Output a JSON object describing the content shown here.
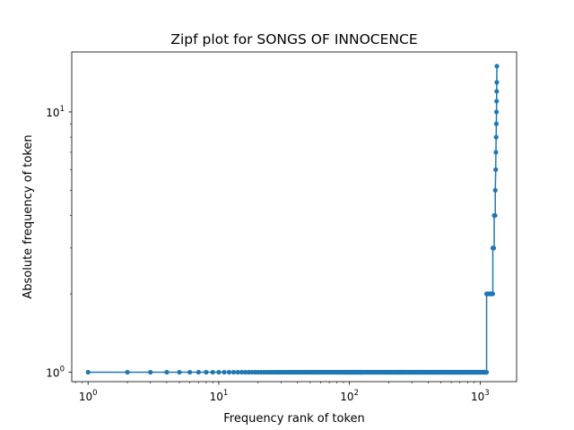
{
  "chart_data": {
    "type": "line",
    "title": "Zipf plot for SONGS OF INNOCENCE",
    "xlabel": "Frequency rank of token",
    "ylabel": "Absolute frequency of token",
    "xscale": "log",
    "yscale": "log",
    "xlim": [
      0.75,
      1900
    ],
    "ylim": [
      0.92,
      17
    ],
    "x_ticks": [
      {
        "base": "10",
        "exp": "0"
      },
      {
        "base": "10",
        "exp": "1"
      },
      {
        "base": "10",
        "exp": "2"
      },
      {
        "base": "10",
        "exp": "3"
      }
    ],
    "y_ticks": [
      {
        "base": "10",
        "exp": "0"
      },
      {
        "base": "10",
        "exp": "1"
      }
    ],
    "grid": false,
    "color": "#1f77b4",
    "marker": "circle",
    "series": [
      {
        "segments": [
          {
            "rank_from": 1,
            "rank_to": 1120,
            "frequency": 1
          },
          {
            "rank_from": 1120,
            "rank_to": 1250,
            "frequency": 2
          },
          {
            "rank_from": 1250,
            "rank_to": 1280,
            "frequency": 3
          },
          {
            "rank_from": 1280,
            "rank_to": 1305,
            "frequency": 4
          }
        ],
        "points": [
          {
            "x": 1305,
            "y": 5
          },
          {
            "x": 1315,
            "y": 6
          },
          {
            "x": 1320,
            "y": 7
          },
          {
            "x": 1325,
            "y": 8
          },
          {
            "x": 1330,
            "y": 9
          },
          {
            "x": 1333,
            "y": 10
          },
          {
            "x": 1336,
            "y": 11
          },
          {
            "x": 1338,
            "y": 12
          },
          {
            "x": 1340,
            "y": 13
          },
          {
            "x": 1342,
            "y": 15
          }
        ]
      }
    ]
  }
}
